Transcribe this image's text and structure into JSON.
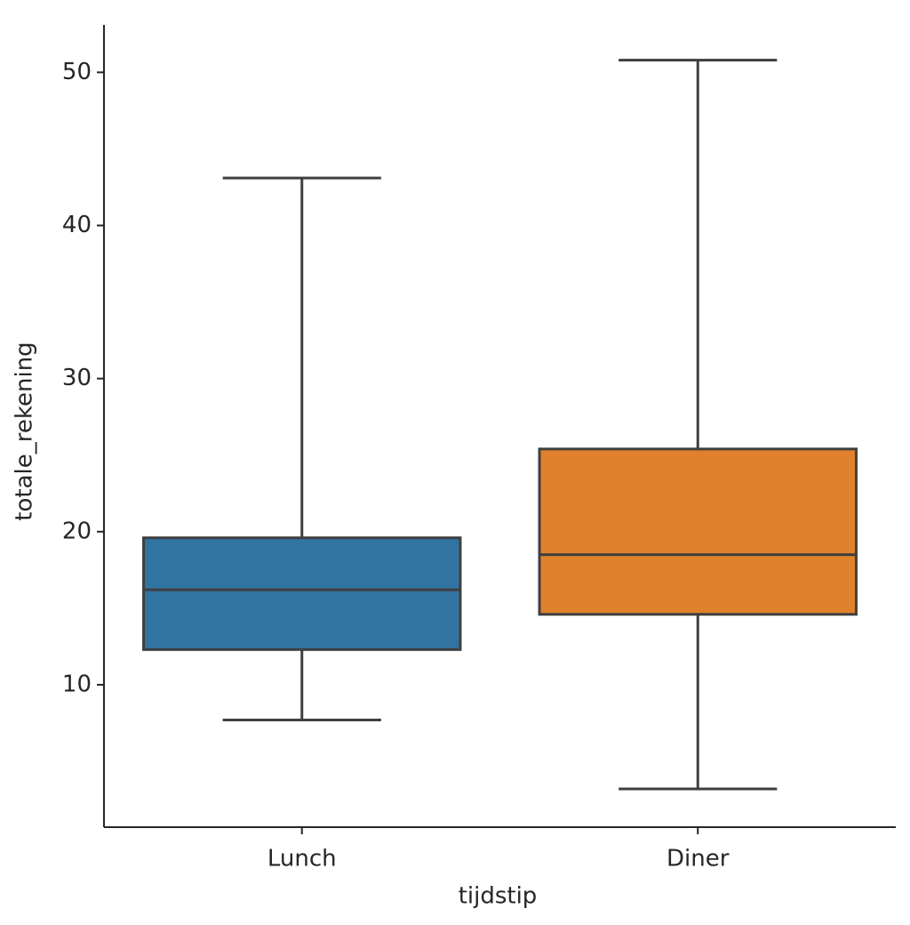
{
  "chart_data": {
    "type": "box",
    "xlabel": "tijdstip",
    "ylabel": "totale_rekening",
    "categories": [
      "Lunch",
      "Diner"
    ],
    "colors": [
      "#3274a1",
      "#e1812c"
    ],
    "stats": [
      {
        "min": 7.7,
        "q1": 12.3,
        "median": 16.2,
        "q3": 19.6,
        "max": 43.1
      },
      {
        "min": 3.2,
        "q1": 14.6,
        "median": 18.5,
        "q3": 25.4,
        "max": 50.8
      }
    ],
    "ylim": [
      0.7,
      53.1
    ],
    "yticks": [
      10,
      20,
      30,
      40,
      50
    ]
  }
}
